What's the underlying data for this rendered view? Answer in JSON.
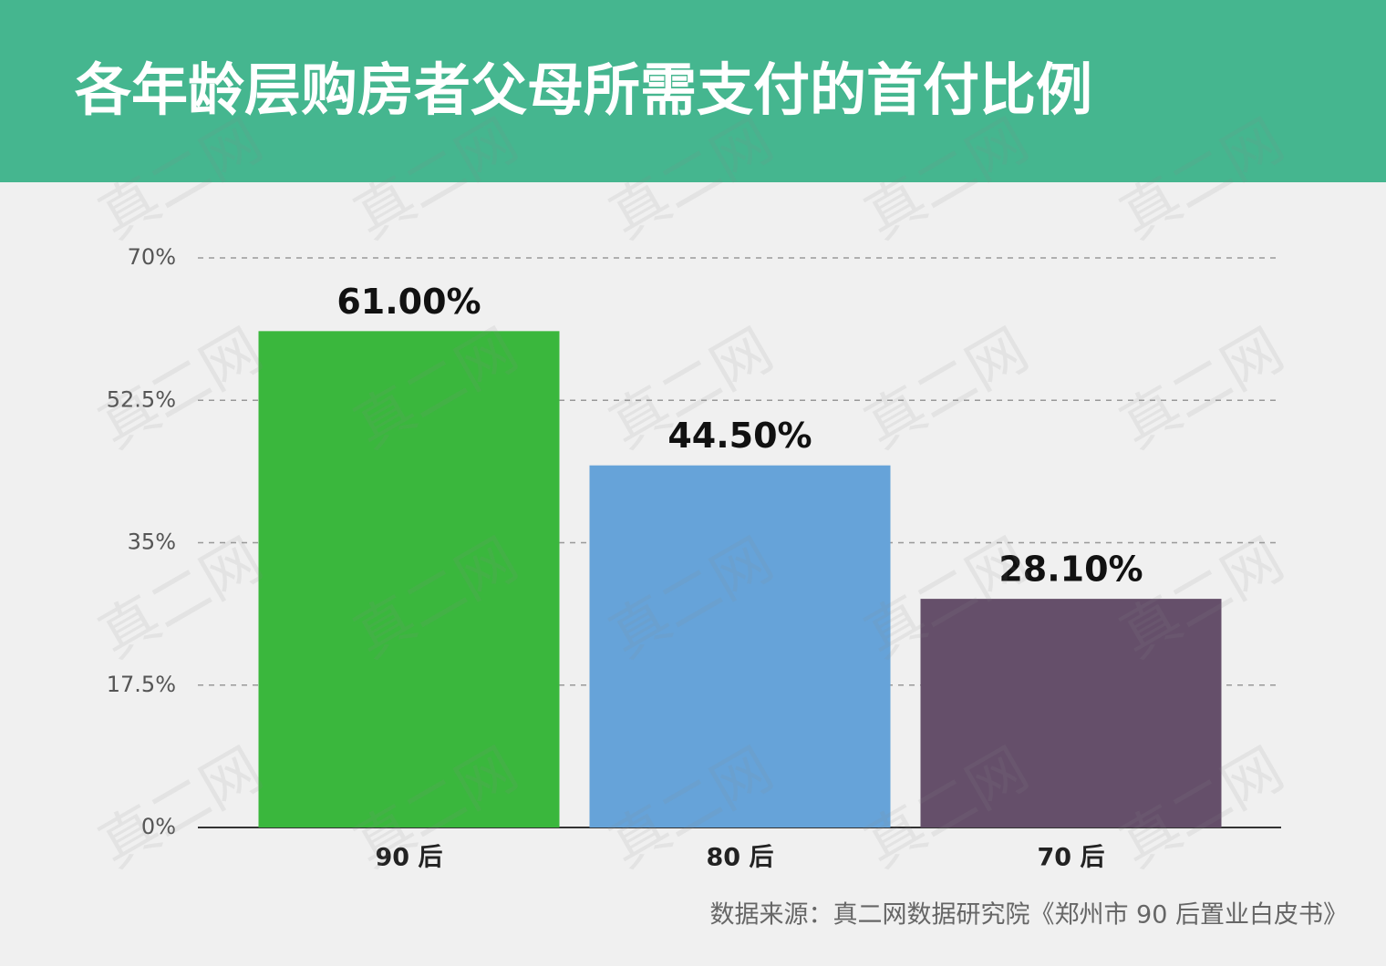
{
  "chart_data": {
    "type": "bar",
    "title": "各年龄层购房者父母所需支付的首付比例",
    "categories": [
      "90 后",
      "80 后",
      "70 后"
    ],
    "values": [
      61,
      44.5,
      28.1
    ],
    "value_labels": [
      "61.00%",
      "44.50%",
      "28.10%"
    ],
    "colors": [
      "#3ab73d",
      "#66a3d9",
      "#654f6a"
    ],
    "ylim": [
      0,
      70
    ],
    "yticks": [
      {
        "value": 0,
        "label": "0%"
      },
      {
        "value": 17.5,
        "label": "17.5%"
      },
      {
        "value": 35,
        "label": "35%"
      },
      {
        "value": 52.5,
        "label": "52.5%"
      },
      {
        "value": 70,
        "label": "70%"
      }
    ],
    "grid": true,
    "source": "数据来源：真二网数据研究院《郑州市 90 后置业白皮书》",
    "watermark": "真二网"
  }
}
